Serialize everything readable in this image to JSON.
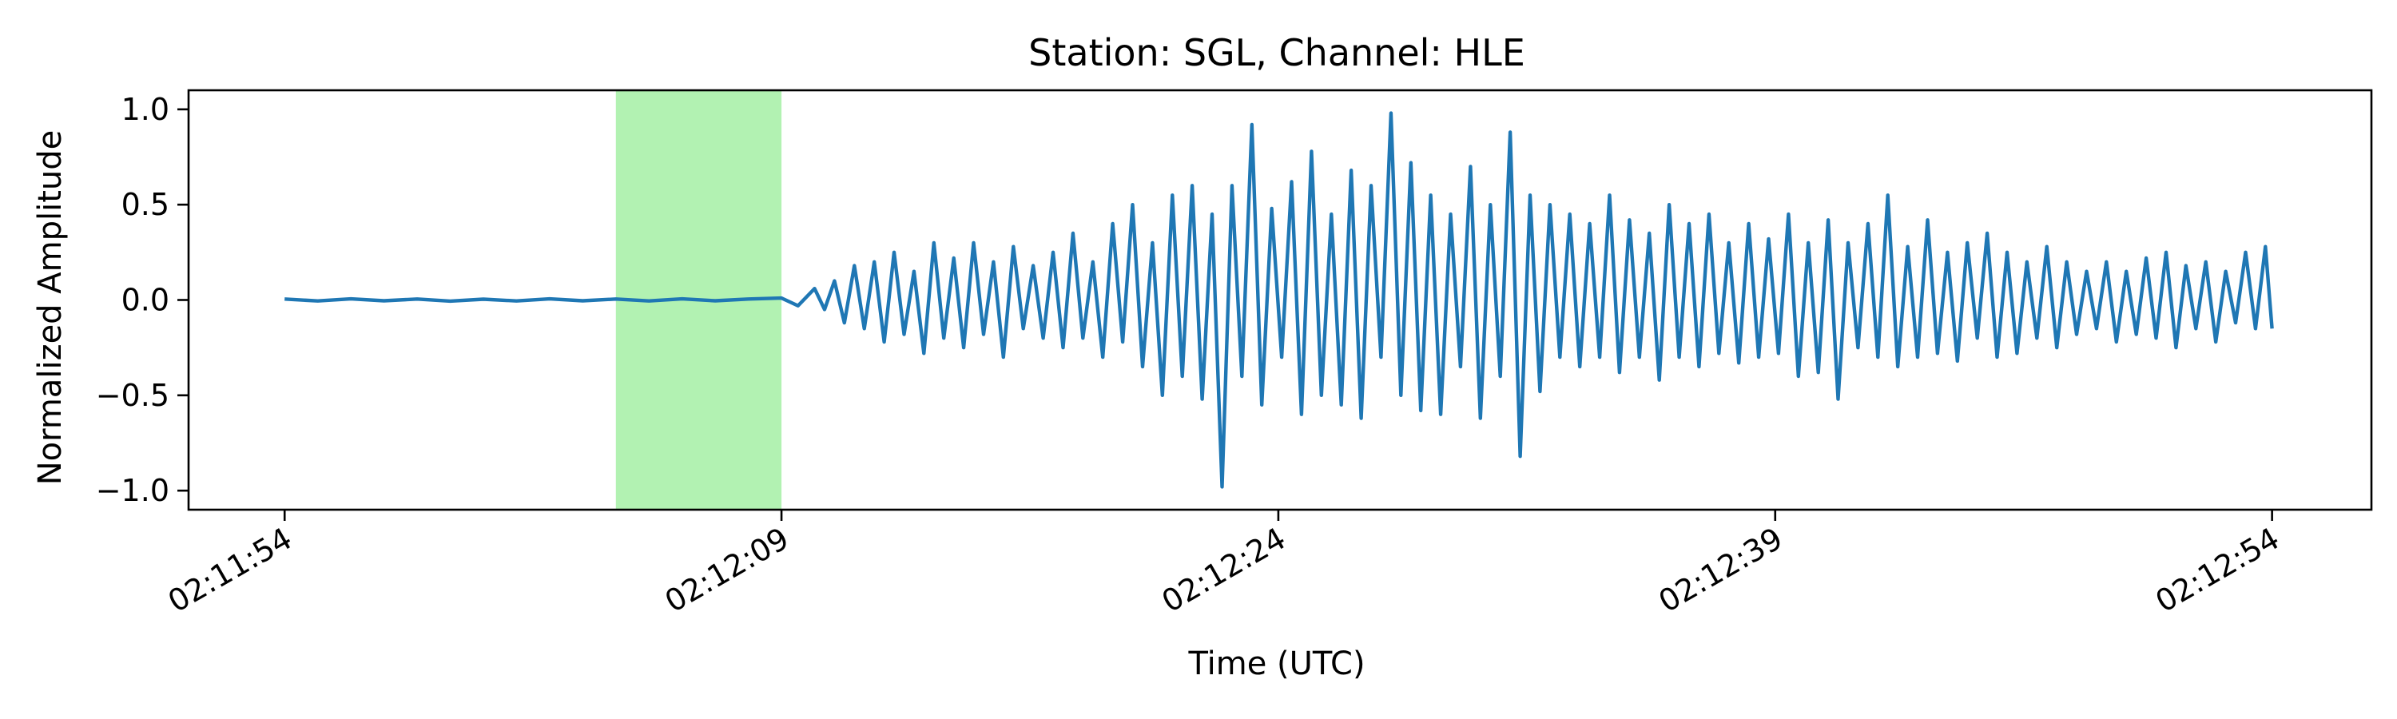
{
  "chart_data": {
    "type": "line",
    "title": "Station: SGL, Channel: HLE",
    "xlabel": "Time (UTC)",
    "ylabel": "Normalized Amplitude",
    "x_unit": "seconds",
    "xlim": [
      -2.9,
      63
    ],
    "ylim": [
      -1.1,
      1.1
    ],
    "x_ticks": [
      {
        "value": 0,
        "label": "02:11:54"
      },
      {
        "value": 15,
        "label": "02:12:09"
      },
      {
        "value": 30,
        "label": "02:12:24"
      },
      {
        "value": 45,
        "label": "02:12:39"
      },
      {
        "value": 60,
        "label": "02:12:54"
      }
    ],
    "y_ticks": [
      {
        "value": 1.0,
        "label": "1.0"
      },
      {
        "value": 0.5,
        "label": "0.5"
      },
      {
        "value": 0.0,
        "label": "0.0"
      },
      {
        "value": -0.5,
        "label": "−0.5"
      },
      {
        "value": -1.0,
        "label": "−1.0"
      }
    ],
    "highlight": {
      "x_start": 10.0,
      "x_end": 15.0,
      "color": "#b2f2b2"
    },
    "series": [
      {
        "color": "#1f77b4",
        "x": [
          0,
          1,
          2,
          3,
          4,
          5,
          6,
          7,
          8,
          9,
          10,
          11,
          12,
          13,
          14,
          15,
          15.5,
          16,
          16.3,
          16.6,
          16.9,
          17.2,
          17.5,
          17.8,
          18.1,
          18.4,
          18.7,
          19.0,
          19.3,
          19.6,
          19.9,
          20.2,
          20.5,
          20.8,
          21.1,
          21.4,
          21.7,
          22.0,
          22.3,
          22.6,
          22.9,
          23.2,
          23.5,
          23.8,
          24.1,
          24.4,
          24.7,
          25.0,
          25.3,
          25.6,
          25.9,
          26.2,
          26.5,
          26.8,
          27.1,
          27.4,
          27.7,
          28.0,
          28.3,
          28.6,
          28.9,
          29.2,
          29.5,
          29.8,
          30.1,
          30.4,
          30.7,
          31.0,
          31.3,
          31.6,
          31.9,
          32.2,
          32.5,
          32.8,
          33.1,
          33.4,
          33.7,
          34.0,
          34.3,
          34.6,
          34.9,
          35.2,
          35.5,
          35.8,
          36.1,
          36.4,
          36.7,
          37.0,
          37.3,
          37.6,
          37.9,
          38.2,
          38.5,
          38.8,
          39.1,
          39.4,
          39.7,
          40.0,
          40.3,
          40.6,
          40.9,
          41.2,
          41.5,
          41.8,
          42.1,
          42.4,
          42.7,
          43.0,
          43.3,
          43.6,
          43.9,
          44.2,
          44.5,
          44.8,
          45.1,
          45.4,
          45.7,
          46.0,
          46.3,
          46.6,
          46.9,
          47.2,
          47.5,
          47.8,
          48.1,
          48.4,
          48.7,
          49.0,
          49.3,
          49.6,
          49.9,
          50.2,
          50.5,
          50.8,
          51.1,
          51.4,
          51.7,
          52.0,
          52.3,
          52.6,
          52.9,
          53.2,
          53.5,
          53.8,
          54.1,
          54.4,
          54.7,
          55.0,
          55.3,
          55.6,
          55.9,
          56.2,
          56.5,
          56.8,
          57.1,
          57.4,
          57.7,
          58.0,
          58.3,
          58.6,
          58.9,
          59.2,
          59.5,
          59.8,
          60.0
        ],
        "y": [
          0.005,
          -0.005,
          0.006,
          -0.004,
          0.005,
          -0.006,
          0.004,
          -0.005,
          0.006,
          -0.004,
          0.005,
          -0.005,
          0.006,
          -0.004,
          0.005,
          0.01,
          -0.03,
          0.06,
          -0.05,
          0.1,
          -0.12,
          0.18,
          -0.15,
          0.2,
          -0.22,
          0.25,
          -0.18,
          0.15,
          -0.28,
          0.3,
          -0.2,
          0.22,
          -0.25,
          0.3,
          -0.18,
          0.2,
          -0.3,
          0.28,
          -0.15,
          0.18,
          -0.2,
          0.25,
          -0.25,
          0.35,
          -0.2,
          0.2,
          -0.3,
          0.4,
          -0.22,
          0.5,
          -0.35,
          0.3,
          -0.5,
          0.55,
          -0.4,
          0.6,
          -0.52,
          0.45,
          -0.98,
          0.6,
          -0.4,
          0.92,
          -0.55,
          0.48,
          -0.3,
          0.62,
          -0.6,
          0.78,
          -0.5,
          0.45,
          -0.55,
          0.68,
          -0.62,
          0.6,
          -0.3,
          0.98,
          -0.5,
          0.72,
          -0.58,
          0.55,
          -0.6,
          0.45,
          -0.35,
          0.7,
          -0.62,
          0.5,
          -0.4,
          0.88,
          -0.82,
          0.55,
          -0.48,
          0.5,
          -0.3,
          0.45,
          -0.35,
          0.4,
          -0.3,
          0.55,
          -0.38,
          0.42,
          -0.3,
          0.35,
          -0.42,
          0.5,
          -0.3,
          0.4,
          -0.35,
          0.45,
          -0.28,
          0.3,
          -0.33,
          0.4,
          -0.3,
          0.32,
          -0.28,
          0.45,
          -0.4,
          0.3,
          -0.38,
          0.42,
          -0.52,
          0.3,
          -0.25,
          0.4,
          -0.3,
          0.55,
          -0.35,
          0.28,
          -0.3,
          0.42,
          -0.28,
          0.25,
          -0.32,
          0.3,
          -0.2,
          0.35,
          -0.3,
          0.25,
          -0.28,
          0.2,
          -0.2,
          0.28,
          -0.25,
          0.2,
          -0.18,
          0.15,
          -0.15,
          0.2,
          -0.22,
          0.15,
          -0.18,
          0.22,
          -0.2,
          0.25,
          -0.25,
          0.18,
          -0.15,
          0.2,
          -0.22,
          0.15,
          -0.12,
          0.25,
          -0.15,
          0.28,
          -0.15
        ]
      }
    ]
  }
}
